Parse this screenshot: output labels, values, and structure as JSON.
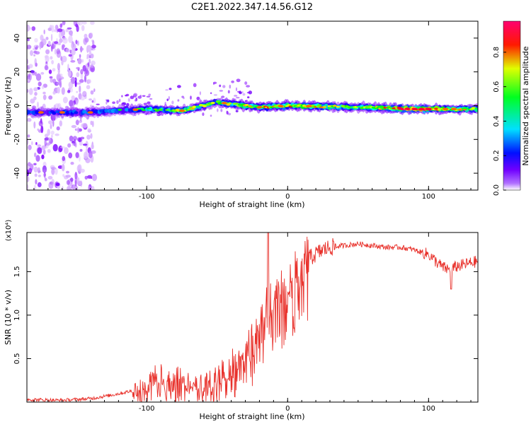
{
  "title": "C2E1.2022.347.14.56.G12",
  "colorbar": {
    "label": "Normalized spectral amplitude",
    "ticks": [
      "0.0",
      "0.2",
      "0.4",
      "0.6",
      "0.8"
    ]
  },
  "chart_data": [
    {
      "type": "heatmap",
      "xlabel": "Height of straight line (km)",
      "ylabel": "Frequency (Hz)",
      "xlim": [
        -185,
        135
      ],
      "ylim": [
        -50,
        50
      ],
      "xticks": [
        "-100",
        "0",
        "100"
      ],
      "yticks": [
        "-40",
        "-20",
        "0",
        "20",
        "40"
      ],
      "colormap": [
        "#ffffff",
        "#8000ff",
        "#0000ff",
        "#00ffff",
        "#00ff00",
        "#ffff00",
        "#ff0000",
        "#ff0080"
      ],
      "ridge": {
        "description_points": [
          {
            "x": -185,
            "freq": -4,
            "amp": 0.3
          },
          {
            "x": -140,
            "freq": -4,
            "amp": 0.35
          },
          {
            "x": -100,
            "freq": -2,
            "amp": 0.45
          },
          {
            "x": -75,
            "freq": -3,
            "amp": 0.6
          },
          {
            "x": -50,
            "freq": 2,
            "amp": 0.55
          },
          {
            "x": -20,
            "freq": -1,
            "amp": 0.65
          },
          {
            "x": 0,
            "freq": 0,
            "amp": 0.75
          },
          {
            "x": 50,
            "freq": -1,
            "amp": 0.55
          },
          {
            "x": 90,
            "freq": -2,
            "amp": 0.9
          },
          {
            "x": 135,
            "freq": -2,
            "amp": 0.55
          }
        ]
      }
    },
    {
      "type": "line",
      "xlabel": "Height of straight line (km)",
      "ylabel": "SNR (10 * v/v)",
      "yunit": "(x10⁴)",
      "xlim": [
        -185,
        135
      ],
      "ylim": [
        0,
        1.95
      ],
      "xticks": [
        "-100",
        "0",
        "100"
      ],
      "yticks": [
        "0.5",
        "1.0",
        "1.5"
      ],
      "color": "#e8302a",
      "series": [
        {
          "x": [
            -185,
            -160,
            -140,
            -125,
            -110,
            -100,
            -95,
            -90,
            -85,
            -80,
            -70,
            -60,
            -50,
            -40,
            -30,
            -20,
            -15,
            -10,
            -5,
            0,
            5,
            10,
            15,
            20,
            25,
            30,
            40,
            50,
            60,
            70,
            80,
            90,
            95,
            100,
            105,
            110,
            115,
            120,
            125,
            130,
            135
          ],
          "values": [
            0.03,
            0.02,
            0.04,
            0.08,
            0.13,
            0.2,
            0.3,
            0.35,
            0.25,
            0.3,
            0.25,
            0.2,
            0.3,
            0.45,
            0.6,
            0.8,
            1.1,
            1.2,
            1.25,
            1.35,
            1.5,
            1.6,
            1.65,
            1.7,
            1.75,
            1.78,
            1.8,
            1.82,
            1.8,
            1.78,
            1.78,
            1.75,
            1.72,
            1.7,
            1.62,
            1.55,
            1.52,
            1.56,
            1.58,
            1.6,
            1.62
          ]
        }
      ]
    }
  ]
}
